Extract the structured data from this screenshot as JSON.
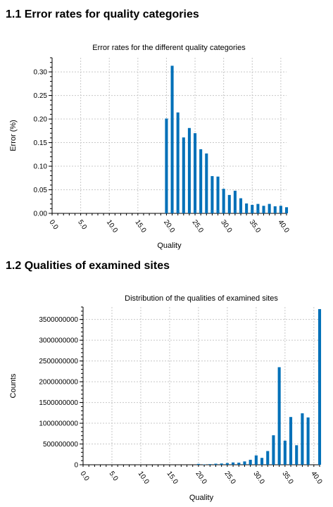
{
  "sections": [
    {
      "heading": "1.1 Error rates for quality categories"
    },
    {
      "heading": "1.2 Qualities of examined sites"
    }
  ],
  "bar_color": "#0070b8",
  "chart_data": [
    {
      "type": "bar",
      "title": "Error rates for the different quality categories",
      "xlabel": "Quality",
      "ylabel": "Error (%)",
      "xlim": [
        0,
        41
      ],
      "ylim": [
        0,
        0.33
      ],
      "xticks": [
        0,
        5,
        10,
        15,
        20,
        25,
        30,
        35,
        40
      ],
      "xtick_labels": [
        "0.0",
        "5.0",
        "10.0",
        "15.0",
        "20.0",
        "25.0",
        "30.0",
        "35.0",
        "40.0"
      ],
      "yticks": [
        0,
        0.05,
        0.1,
        0.15,
        0.2,
        0.25,
        0.3
      ],
      "ytick_labels": [
        "0.00",
        "0.05",
        "0.10",
        "0.15",
        "0.20",
        "0.25",
        "0.30"
      ],
      "grid": true,
      "x": [
        20,
        21,
        22,
        23,
        24,
        25,
        26,
        27,
        28,
        29,
        30,
        31,
        32,
        33,
        34,
        35,
        36,
        37,
        38,
        39,
        40,
        41
      ],
      "values": [
        0.201,
        0.313,
        0.214,
        0.161,
        0.181,
        0.17,
        0.136,
        0.127,
        0.079,
        0.078,
        0.052,
        0.039,
        0.048,
        0.032,
        0.021,
        0.018,
        0.02,
        0.016,
        0.02,
        0.015,
        0.016,
        0.013
      ]
    },
    {
      "type": "bar",
      "title": "Distribution of the qualities of examined sites",
      "xlabel": "Quality",
      "ylabel": "Counts",
      "xlim": [
        0,
        41
      ],
      "ylim": [
        0,
        3800000000
      ],
      "xticks": [
        0,
        5,
        10,
        15,
        20,
        25,
        30,
        35,
        40
      ],
      "xtick_labels": [
        "0.0",
        "5.0",
        "10.0",
        "15.0",
        "20.0",
        "25.0",
        "30.0",
        "35.0",
        "40.0"
      ],
      "yticks": [
        0,
        500000000,
        1000000000,
        1500000000,
        2000000000,
        2500000000,
        3000000000,
        3500000000
      ],
      "ytick_labels": [
        "0",
        "500000000",
        "1000000000",
        "1500000000",
        "2000000000",
        "2500000000",
        "3000000000",
        "3500000000"
      ],
      "grid": true,
      "x": [
        20,
        21,
        22,
        23,
        24,
        25,
        26,
        27,
        28,
        29,
        30,
        31,
        32,
        33,
        34,
        35,
        36,
        37,
        38,
        39,
        40,
        41
      ],
      "values": [
        20000000,
        8000000,
        15000000,
        25000000,
        30000000,
        40000000,
        55000000,
        50000000,
        80000000,
        120000000,
        225000000,
        165000000,
        330000000,
        710000000,
        2350000000,
        580000000,
        1150000000,
        470000000,
        1240000000,
        1140000000,
        0,
        3750000000
      ]
    }
  ]
}
